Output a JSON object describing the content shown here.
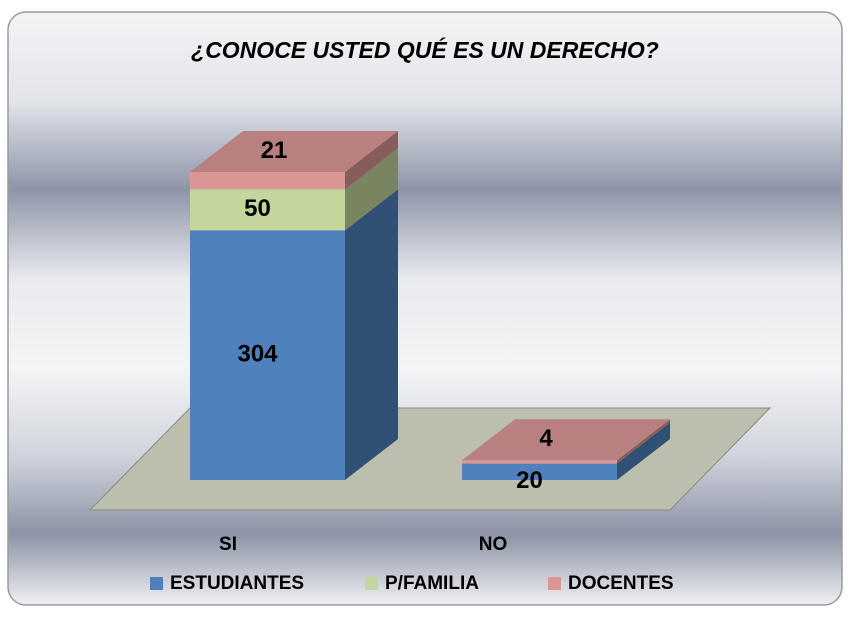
{
  "chart_data": {
    "type": "bar3d_stacked",
    "title": "¿CONOCE USTED QUÉ ES UN DERECHO?",
    "categories": [
      "SI",
      "NO"
    ],
    "series": [
      {
        "name": "ESTUDIANTES",
        "color": "#4f81bd",
        "values": [
          304,
          20
        ]
      },
      {
        "name": "P/FAMILIA",
        "color": "#c3d69b",
        "values": [
          50,
          0
        ]
      },
      {
        "name": "DOCENTES",
        "color": "#d99694",
        "values": [
          21,
          4
        ]
      }
    ],
    "legend": "bottom"
  }
}
